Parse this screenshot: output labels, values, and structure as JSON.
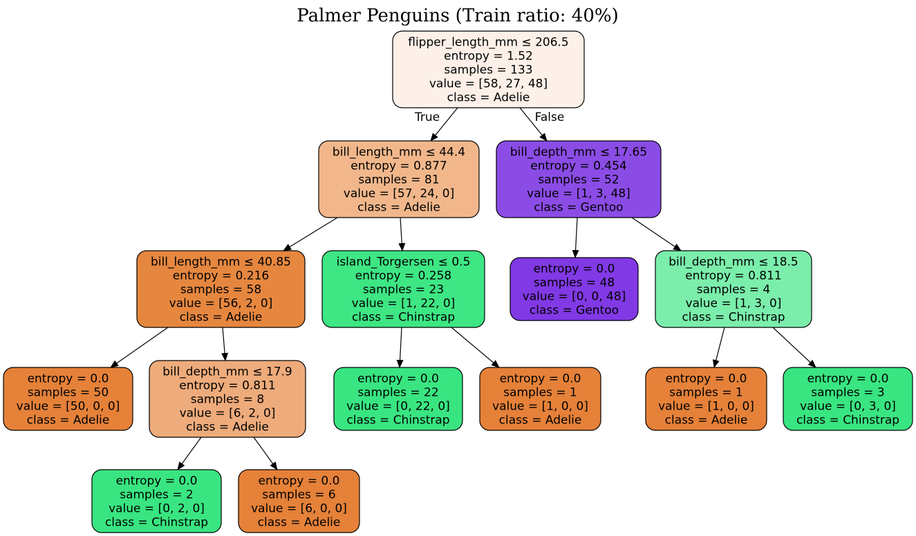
{
  "title": "Palmer Penguins (Train ratio: 40%)",
  "colors": {
    "adelie_light": "#fdf0e8",
    "adelie_medium": "#f1b78b",
    "adelie_mid": "#efab78",
    "adelie_dark": "#e6843e",
    "gentoo_medium": "#8b4ce6",
    "gentoo_dark": "#8139e5",
    "chinstrap_light": "#79ecad",
    "chinstrap_dark": "#3de685",
    "chinstrap_mid": "#39e581"
  },
  "nodes": [
    {
      "id": "n0",
      "lines": [
        "flipper_length_mm ≤ 206.5",
        "entropy = 1.52",
        "samples = 133",
        "value = [58, 27, 48]",
        "class = Adelie"
      ],
      "fill": "#fdf0e8"
    },
    {
      "id": "n1",
      "lines": [
        "bill_length_mm ≤ 44.4",
        "entropy = 0.877",
        "samples = 81",
        "value = [57, 24, 0]",
        "class = Adelie"
      ],
      "fill": "#f1b78b"
    },
    {
      "id": "n2",
      "lines": [
        "bill_depth_mm ≤ 17.65",
        "entropy = 0.454",
        "samples = 52",
        "value = [1, 3, 48]",
        "class = Gentoo"
      ],
      "fill": "#8b4ce6"
    },
    {
      "id": "n3",
      "lines": [
        "bill_length_mm ≤ 40.85",
        "entropy = 0.216",
        "samples = 58",
        "value = [56, 2, 0]",
        "class = Adelie"
      ],
      "fill": "#e6873f"
    },
    {
      "id": "n4",
      "lines": [
        "island_Torgersen ≤ 0.5",
        "entropy = 0.258",
        "samples = 23",
        "value = [1, 22, 0]",
        "class = Chinstrap"
      ],
      "fill": "#3ee684"
    },
    {
      "id": "n5",
      "lines": [
        "entropy = 0.0",
        "samples = 48",
        "value = [0, 0, 48]",
        "class = Gentoo"
      ],
      "fill": "#8139e5"
    },
    {
      "id": "n6",
      "lines": [
        "bill_depth_mm ≤ 18.5",
        "entropy = 0.811",
        "samples = 4",
        "value = [1, 3, 0]",
        "class = Chinstrap"
      ],
      "fill": "#7beeab"
    },
    {
      "id": "n7",
      "lines": [
        "entropy = 0.0",
        "samples = 50",
        "value = [50, 0, 0]",
        "class = Adelie"
      ],
      "fill": "#e58139"
    },
    {
      "id": "n8",
      "lines": [
        "bill_depth_mm ≤ 17.9",
        "entropy = 0.811",
        "samples = 8",
        "value = [6, 2, 0]",
        "class = Adelie"
      ],
      "fill": "#eeab7b"
    },
    {
      "id": "n9",
      "lines": [
        "entropy = 0.0",
        "samples = 22",
        "value = [0, 22, 0]",
        "class = Chinstrap"
      ],
      "fill": "#39e581"
    },
    {
      "id": "n10",
      "lines": [
        "entropy = 0.0",
        "samples = 1",
        "value = [1, 0, 0]",
        "class = Adelie"
      ],
      "fill": "#e58139"
    },
    {
      "id": "n11",
      "lines": [
        "entropy = 0.0",
        "samples = 1",
        "value = [1, 0, 0]",
        "class = Adelie"
      ],
      "fill": "#e58139"
    },
    {
      "id": "n12",
      "lines": [
        "entropy = 0.0",
        "samples = 3",
        "value = [0, 3, 0]",
        "class = Chinstrap"
      ],
      "fill": "#39e581"
    },
    {
      "id": "n13",
      "lines": [
        "entropy = 0.0",
        "samples = 2",
        "value = [0, 2, 0]",
        "class = Chinstrap"
      ],
      "fill": "#39e581"
    },
    {
      "id": "n14",
      "lines": [
        "entropy = 0.0",
        "samples = 6",
        "value = [6, 0, 0]",
        "class = Adelie"
      ],
      "fill": "#e58139"
    }
  ],
  "edges": [
    {
      "from": "n0",
      "to": "n1",
      "label": "True"
    },
    {
      "from": "n0",
      "to": "n2",
      "label": "False"
    },
    {
      "from": "n1",
      "to": "n3",
      "label": ""
    },
    {
      "from": "n1",
      "to": "n4",
      "label": ""
    },
    {
      "from": "n2",
      "to": "n5",
      "label": ""
    },
    {
      "from": "n2",
      "to": "n6",
      "label": ""
    },
    {
      "from": "n3",
      "to": "n7",
      "label": ""
    },
    {
      "from": "n3",
      "to": "n8",
      "label": ""
    },
    {
      "from": "n4",
      "to": "n9",
      "label": ""
    },
    {
      "from": "n4",
      "to": "n10",
      "label": ""
    },
    {
      "from": "n6",
      "to": "n11",
      "label": ""
    },
    {
      "from": "n6",
      "to": "n12",
      "label": ""
    },
    {
      "from": "n8",
      "to": "n13",
      "label": ""
    },
    {
      "from": "n8",
      "to": "n14",
      "label": ""
    }
  ]
}
